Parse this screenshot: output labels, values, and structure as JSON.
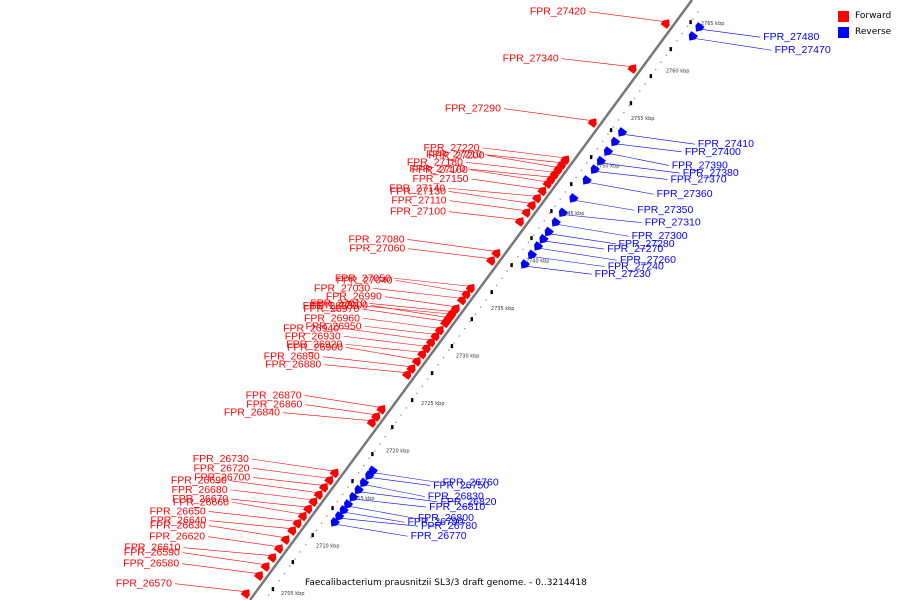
{
  "caption": "Faecalibacterium prausnitzii SL3/3 draft genome. - 0..3214418",
  "legend": [
    {
      "label": "Forward",
      "color": "#ff0000"
    },
    {
      "label": "Reverse",
      "color": "#0000ff"
    }
  ],
  "colors": {
    "forward": "#ff0000",
    "reverse": "#0000ff",
    "backbone": "#777777"
  },
  "strands": {
    "forward": {
      "scale_labels": [
        {
          "text": "2705 kbp",
          "kb": 2705
        },
        {
          "text": "2710 kbp",
          "kb": 2710
        },
        {
          "text": "2715 kbp",
          "kb": 2715
        },
        {
          "text": "2720 kbp",
          "kb": 2720
        },
        {
          "text": "2725 kbp",
          "kb": 2725
        },
        {
          "text": "2730 kbp",
          "kb": 2730
        },
        {
          "text": "2735 kbp",
          "kb": 2735
        },
        {
          "text": "2740 kbp",
          "kb": 2740
        },
        {
          "text": "2745 kbp",
          "kb": 2745
        },
        {
          "text": "2750 kbp",
          "kb": 2750
        },
        {
          "text": "2755 kbp",
          "kb": 2755
        },
        {
          "text": "2760 kbp",
          "kb": 2760
        },
        {
          "text": "2765 kbp",
          "kb": 2765
        }
      ],
      "genes": [
        {
          "name": "FPR_26570",
          "t": 0.005
        },
        {
          "name": "FPR_26580",
          "t": 0.035
        },
        {
          "name": "FPR_26590",
          "t": 0.05
        },
        {
          "name": "FPR_26610",
          "t": 0.065
        },
        {
          "name": "FPR_26620",
          "t": 0.08
        },
        {
          "name": "FPR_26630",
          "t": 0.095
        },
        {
          "name": "FPR_26640",
          "t": 0.11
        },
        {
          "name": "FPR_26650",
          "t": 0.122
        },
        {
          "name": "FPR_26660",
          "t": 0.134
        },
        {
          "name": "FPR_26670",
          "t": 0.146
        },
        {
          "name": "FPR_26680",
          "t": 0.158
        },
        {
          "name": "FPR_26690",
          "t": 0.17
        },
        {
          "name": "FPR_26700",
          "t": 0.182
        },
        {
          "name": "FPR_26720",
          "t": 0.194
        },
        {
          "name": "FPR_26730",
          "t": 0.206
        },
        {
          "name": "FPR_26840",
          "t": 0.29
        },
        {
          "name": "FPR_26860",
          "t": 0.3
        },
        {
          "name": "FPR_26870",
          "t": 0.312
        },
        {
          "name": "FPR_26880",
          "t": 0.37
        },
        {
          "name": "FPR_26890",
          "t": 0.38
        },
        {
          "name": "FPR_26900",
          "t": 0.392
        },
        {
          "name": "FPR_26920",
          "t": 0.404
        },
        {
          "name": "FPR_26930",
          "t": 0.414
        },
        {
          "name": "FPR_26940",
          "t": 0.424
        },
        {
          "name": "FPR_26950",
          "t": 0.434
        },
        {
          "name": "FPR_26960",
          "t": 0.444
        },
        {
          "name": "FPR_26970",
          "t": 0.456
        },
        {
          "name": "FPR_26980",
          "t": 0.468
        },
        {
          "name": "FPR_26990",
          "t": 0.48
        },
        {
          "name": "FPR_27000",
          "t": 0.462
        },
        {
          "name": "FPR_27010",
          "t": 0.472
        },
        {
          "name": "FPR_27030",
          "t": 0.494
        },
        {
          "name": "FPR_27040",
          "t": 0.504
        },
        {
          "name": "FPR_27050",
          "t": 0.514
        },
        {
          "name": "FPR_27060",
          "t": 0.56
        },
        {
          "name": "FPR_27080",
          "t": 0.572
        },
        {
          "name": "FPR_27100",
          "t": 0.625
        },
        {
          "name": "FPR_27110",
          "t": 0.64
        },
        {
          "name": "FPR_27130",
          "t": 0.652
        },
        {
          "name": "FPR_27140",
          "t": 0.664
        },
        {
          "name": "FPR_27150",
          "t": 0.676
        },
        {
          "name": "FPR_27160",
          "t": 0.688
        },
        {
          "name": "FPR_27170",
          "t": 0.696
        },
        {
          "name": "FPR_27180",
          "t": 0.704
        },
        {
          "name": "FPR_27200",
          "t": 0.712
        },
        {
          "name": "FPR_27210",
          "t": 0.72
        },
        {
          "name": "FPR_27220",
          "t": 0.728
        },
        {
          "name": "FPR_27290",
          "t": 0.79
        },
        {
          "name": "FPR_27340",
          "t": 0.88
        },
        {
          "name": "FPR_27420",
          "t": 0.955
        }
      ]
    },
    "reverse": {
      "genes": [
        {
          "name": "FPR_26750",
          "t": 0.228
        },
        {
          "name": "FPR_26760",
          "t": 0.236
        },
        {
          "name": "FPR_26770",
          "t": 0.15
        },
        {
          "name": "FPR_26780",
          "t": 0.16
        },
        {
          "name": "FPR_26790",
          "t": 0.17
        },
        {
          "name": "FPR_26800",
          "t": 0.18
        },
        {
          "name": "FPR_26810",
          "t": 0.192
        },
        {
          "name": "FPR_26820",
          "t": 0.204
        },
        {
          "name": "FPR_26830",
          "t": 0.216
        },
        {
          "name": "FPR_27230",
          "t": 0.58
        },
        {
          "name": "FPR_27240",
          "t": 0.596
        },
        {
          "name": "FPR_27260",
          "t": 0.61
        },
        {
          "name": "FPR_27270",
          "t": 0.622
        },
        {
          "name": "FPR_27280",
          "t": 0.634
        },
        {
          "name": "FPR_27300",
          "t": 0.65
        },
        {
          "name": "FPR_27310",
          "t": 0.666
        },
        {
          "name": "FPR_27350",
          "t": 0.69
        },
        {
          "name": "FPR_27360",
          "t": 0.72
        },
        {
          "name": "FPR_27370",
          "t": 0.738
        },
        {
          "name": "FPR_27380",
          "t": 0.752
        },
        {
          "name": "FPR_27390",
          "t": 0.768
        },
        {
          "name": "FPR_27400",
          "t": 0.784
        },
        {
          "name": "FPR_27410",
          "t": 0.8
        },
        {
          "name": "FPR_27470",
          "t": 0.96
        },
        {
          "name": "FPR_27480",
          "t": 0.975
        }
      ]
    }
  }
}
